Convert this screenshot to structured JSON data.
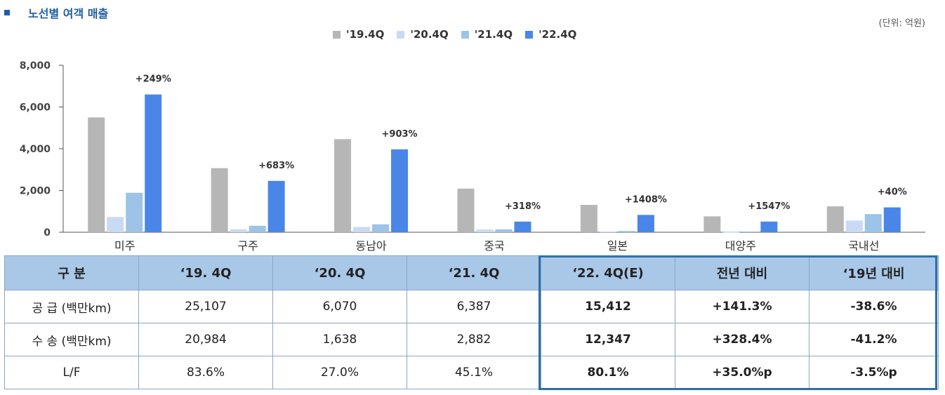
{
  "title": "노선별 여객 매출",
  "unit": "(단위: 억원)",
  "colors": {
    "s19": "#b6b6b6",
    "s20": "#c9daf5",
    "s21": "#9dc3e6",
    "s22": "#4a86e8",
    "title": "#1f5fa8"
  },
  "chart_data": {
    "type": "bar",
    "categories": [
      "미주",
      "구주",
      "동남아",
      "중국",
      "일본",
      "대양주",
      "국내선"
    ],
    "series": [
      {
        "name": "'19.4Q",
        "values": [
          5500,
          3070,
          4460,
          2090,
          1310,
          760,
          1240
        ]
      },
      {
        "name": "'20.4Q",
        "values": [
          730,
          140,
          250,
          130,
          30,
          10,
          560
        ]
      },
      {
        "name": "'21.4Q",
        "values": [
          1890,
          310,
          380,
          140,
          60,
          35,
          870
        ]
      },
      {
        "name": "'22.4Q",
        "values": [
          6600,
          2460,
          3970,
          510,
          830,
          510,
          1190
        ]
      }
    ],
    "annotations": [
      "+249%",
      "+683%",
      "+903%",
      "+318%",
      "+1408%",
      "+1547%",
      "+40%"
    ],
    "yticks": [
      "0",
      "2,000",
      "4,000",
      "6,000",
      "8,000"
    ],
    "ylim": [
      0,
      8000
    ],
    "legend": "top-center",
    "grid": false
  },
  "table": {
    "headers": [
      "구   분",
      "‘19. 4Q",
      "‘20. 4Q",
      "‘21. 4Q",
      "‘22. 4Q(E)",
      "전년 대비",
      "‘19년 대비"
    ],
    "rows": [
      [
        "공 급 (백만km)",
        "25,107",
        "6,070",
        "6,387",
        "15,412",
        "+141.3%",
        "-38.6%"
      ],
      [
        "수 송 (백만km)",
        "20,984",
        "1,638",
        "2,882",
        "12,347",
        "+328.4%",
        "-41.2%"
      ],
      [
        "L/F",
        "83.6%",
        "27.0%",
        "45.1%",
        "80.1%",
        "+35.0%p",
        "-3.5%p"
      ]
    ]
  }
}
